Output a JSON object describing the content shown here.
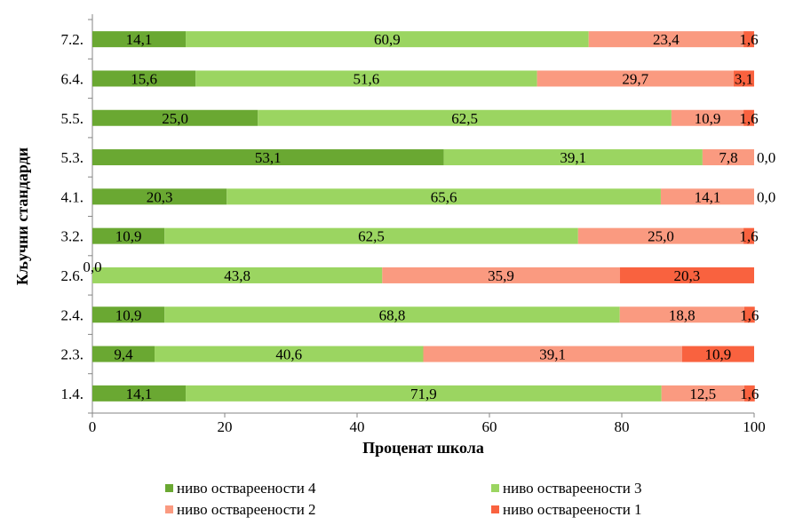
{
  "chart_data": {
    "type": "bar",
    "orientation": "horizontal",
    "stacked": true,
    "categories": [
      "1.4.",
      "2.3.",
      "2.4.",
      "2.6.",
      "3.2.",
      "4.1.",
      "5.3.",
      "5.5.",
      "6.4.",
      "7.2."
    ],
    "series": [
      {
        "name": "ниво оствареености 4",
        "color": "#6aa832",
        "values": [
          14.1,
          9.4,
          10.9,
          0.0,
          10.9,
          20.3,
          53.1,
          25.0,
          15.6,
          14.1
        ],
        "labels": [
          "14,1",
          "9,4",
          "10,9",
          "0,0",
          "10,9",
          "20,3",
          "53,1",
          "25,0",
          "15,6",
          "14,1"
        ]
      },
      {
        "name": "ниво оствареености 3",
        "color": "#9bd561",
        "values": [
          71.9,
          40.6,
          68.8,
          43.8,
          62.5,
          65.6,
          39.1,
          62.5,
          51.6,
          60.9
        ],
        "labels": [
          "71,9",
          "40,6",
          "68,8",
          "43,8",
          "62,5",
          "65,6",
          "39,1",
          "62,5",
          "51,6",
          "60,9"
        ]
      },
      {
        "name": "ниво оствареености 2",
        "color": "#fa9a80",
        "values": [
          12.5,
          39.1,
          18.8,
          35.9,
          25.0,
          14.1,
          7.8,
          10.9,
          29.7,
          23.4
        ],
        "labels": [
          "12,5",
          "39,1",
          "18,8",
          "35,9",
          "25,0",
          "14,1",
          "7,8",
          "10,9",
          "29,7",
          "23,4"
        ]
      },
      {
        "name": "ниво оствареености 1",
        "color": "#f9623f",
        "values": [
          1.6,
          10.9,
          1.6,
          20.3,
          1.6,
          0.0,
          0.0,
          1.6,
          3.1,
          1.6
        ],
        "labels": [
          "1,6",
          "10,9",
          "1,6",
          "20,3",
          "1,6",
          "0,0",
          "0,0",
          "1,6",
          "3,1",
          "1,6"
        ]
      }
    ],
    "xlabel": "Проценат школа",
    "ylabel": "Кључни стандарди",
    "xlim": [
      0,
      100
    ],
    "xticks": [
      "0",
      "20",
      "40",
      "60",
      "80",
      "100"
    ],
    "grid": false,
    "legend_position": "bottom"
  }
}
